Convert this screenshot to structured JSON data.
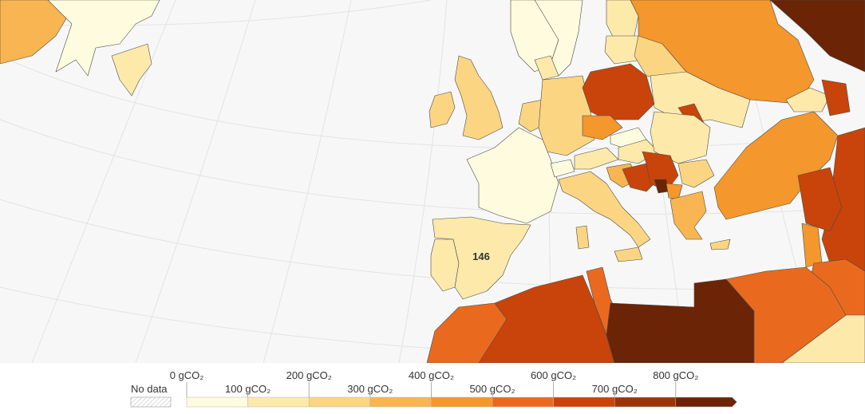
{
  "map": {
    "highlight": {
      "country": "Spain",
      "value_label": "146"
    }
  },
  "legend": {
    "no_data_label": "No data",
    "unit": "gCO₂",
    "upper_labels": [
      "0 gCO₂",
      "200 gCO₂",
      "400 gCO₂",
      "600 gCO₂",
      "800 gCO₂"
    ],
    "lower_labels": [
      "100 gCO₂",
      "300 gCO₂",
      "500 gCO₂",
      "700 gCO₂"
    ],
    "bins": [
      {
        "min": 0,
        "max": 100,
        "color": "#fffbdf"
      },
      {
        "min": 100,
        "max": 200,
        "color": "#fde9aa"
      },
      {
        "min": 200,
        "max": 300,
        "color": "#fbd582"
      },
      {
        "min": 300,
        "max": 400,
        "color": "#f8b552"
      },
      {
        "min": 400,
        "max": 500,
        "color": "#f4972c"
      },
      {
        "min": 500,
        "max": 600,
        "color": "#e96a1e"
      },
      {
        "min": 600,
        "max": 700,
        "color": "#c9440a"
      },
      {
        "min": 700,
        "max": 800,
        "color": "#9b3508"
      },
      {
        "min": 800,
        "max": 900,
        "color": "#6b2406"
      }
    ],
    "no_data_color": "#ffffff"
  }
}
